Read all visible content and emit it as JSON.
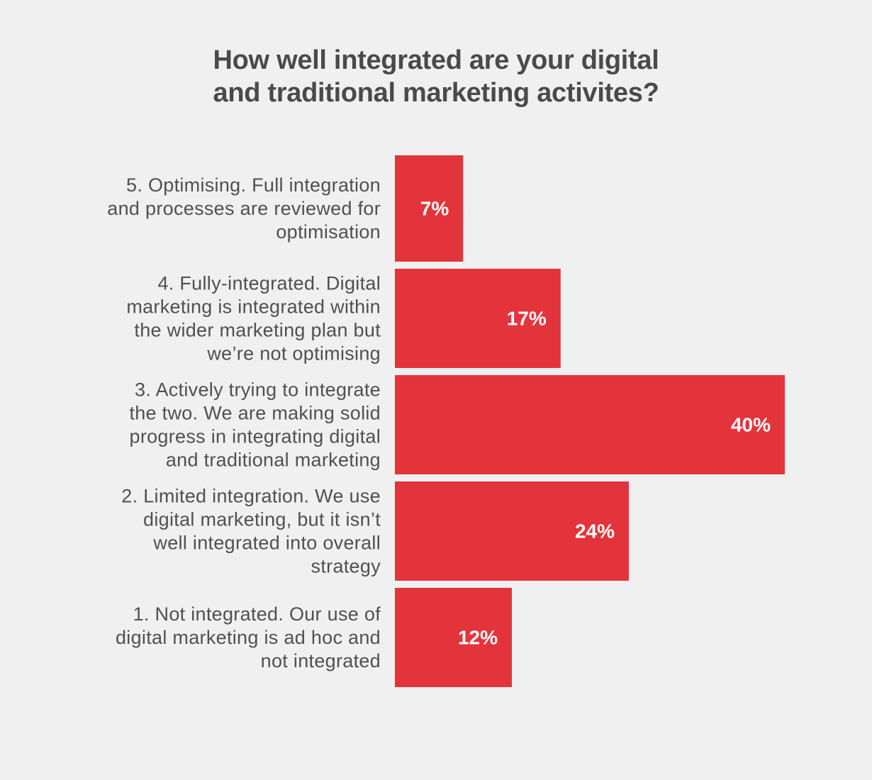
{
  "chart_data": {
    "type": "bar",
    "orientation": "horizontal",
    "title": "How well integrated are your digital and traditional marketing activites?",
    "title_lines": [
      "How well integrated are your digital",
      "and traditional marketing activites?"
    ],
    "categories": [
      {
        "label_lines": [
          "5. Optimising. Full integration",
          "and processes are reviewed for",
          "optimisation"
        ]
      },
      {
        "label_lines": [
          "4. Fully-integrated. Digital",
          "marketing is integrated within",
          "the wider marketing plan but",
          "we’re not optimising"
        ]
      },
      {
        "label_lines": [
          "3. Actively trying to integrate",
          "the two. We are making solid",
          "progress in integrating digital",
          "and traditional marketing"
        ]
      },
      {
        "label_lines": [
          "2. Limited integration. We use",
          "digital marketing, but it isn’t",
          "well integrated into overall",
          "strategy"
        ]
      },
      {
        "label_lines": [
          "1. Not integrated. Our use of",
          "digital marketing is ad hoc and",
          "not integrated"
        ]
      }
    ],
    "values": [
      7,
      17,
      40,
      24,
      12
    ],
    "value_labels": [
      "7%",
      "17%",
      "40%",
      "24%",
      "12%"
    ],
    "unit": "%",
    "bar_color": "#e4343b",
    "background_color": "#f0f0f0",
    "label_color": "#505050",
    "title_color": "#4a4a4a",
    "value_label_color": "#ffffff",
    "grid": false,
    "legend": "none"
  }
}
